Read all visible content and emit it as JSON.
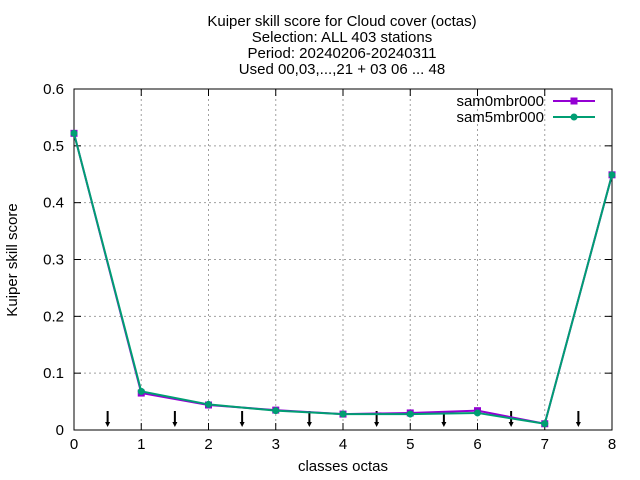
{
  "chart_data": {
    "type": "line",
    "title_lines": [
      "Kuiper skill score  for Cloud cover (octas)",
      "Selection: ALL    403 stations",
      "Period: 20240206-20240311",
      "Used 00,03,...,21 + 03 06 ... 48"
    ],
    "xlabel": "classes octas",
    "ylabel": "Kuiper skill score",
    "xlim": [
      0,
      8
    ],
    "ylim": [
      0,
      0.6
    ],
    "x_ticks": [
      0,
      1,
      2,
      3,
      4,
      5,
      6,
      7,
      8
    ],
    "y_ticks": [
      0,
      0.1,
      0.2,
      0.3,
      0.4,
      0.5,
      0.6
    ],
    "grid": true,
    "legend_position": "top-right",
    "x": [
      0,
      1,
      2,
      3,
      4,
      5,
      6,
      7,
      8
    ],
    "series": [
      {
        "name": "sam0mbr000",
        "color": "#9400d3",
        "marker": "square",
        "values": [
          0.522,
          0.065,
          0.044,
          0.035,
          0.028,
          0.03,
          0.034,
          0.011,
          0.449
        ]
      },
      {
        "name": "sam5mbr000",
        "color": "#009e73",
        "marker": "filled-circle",
        "values": [
          0.522,
          0.068,
          0.045,
          0.034,
          0.028,
          0.028,
          0.03,
          0.011,
          0.449
        ]
      }
    ],
    "arrow_markers_x": [
      0.5,
      1.5,
      2.5,
      3.5,
      4.5,
      5.5,
      6.5,
      7.5
    ]
  }
}
